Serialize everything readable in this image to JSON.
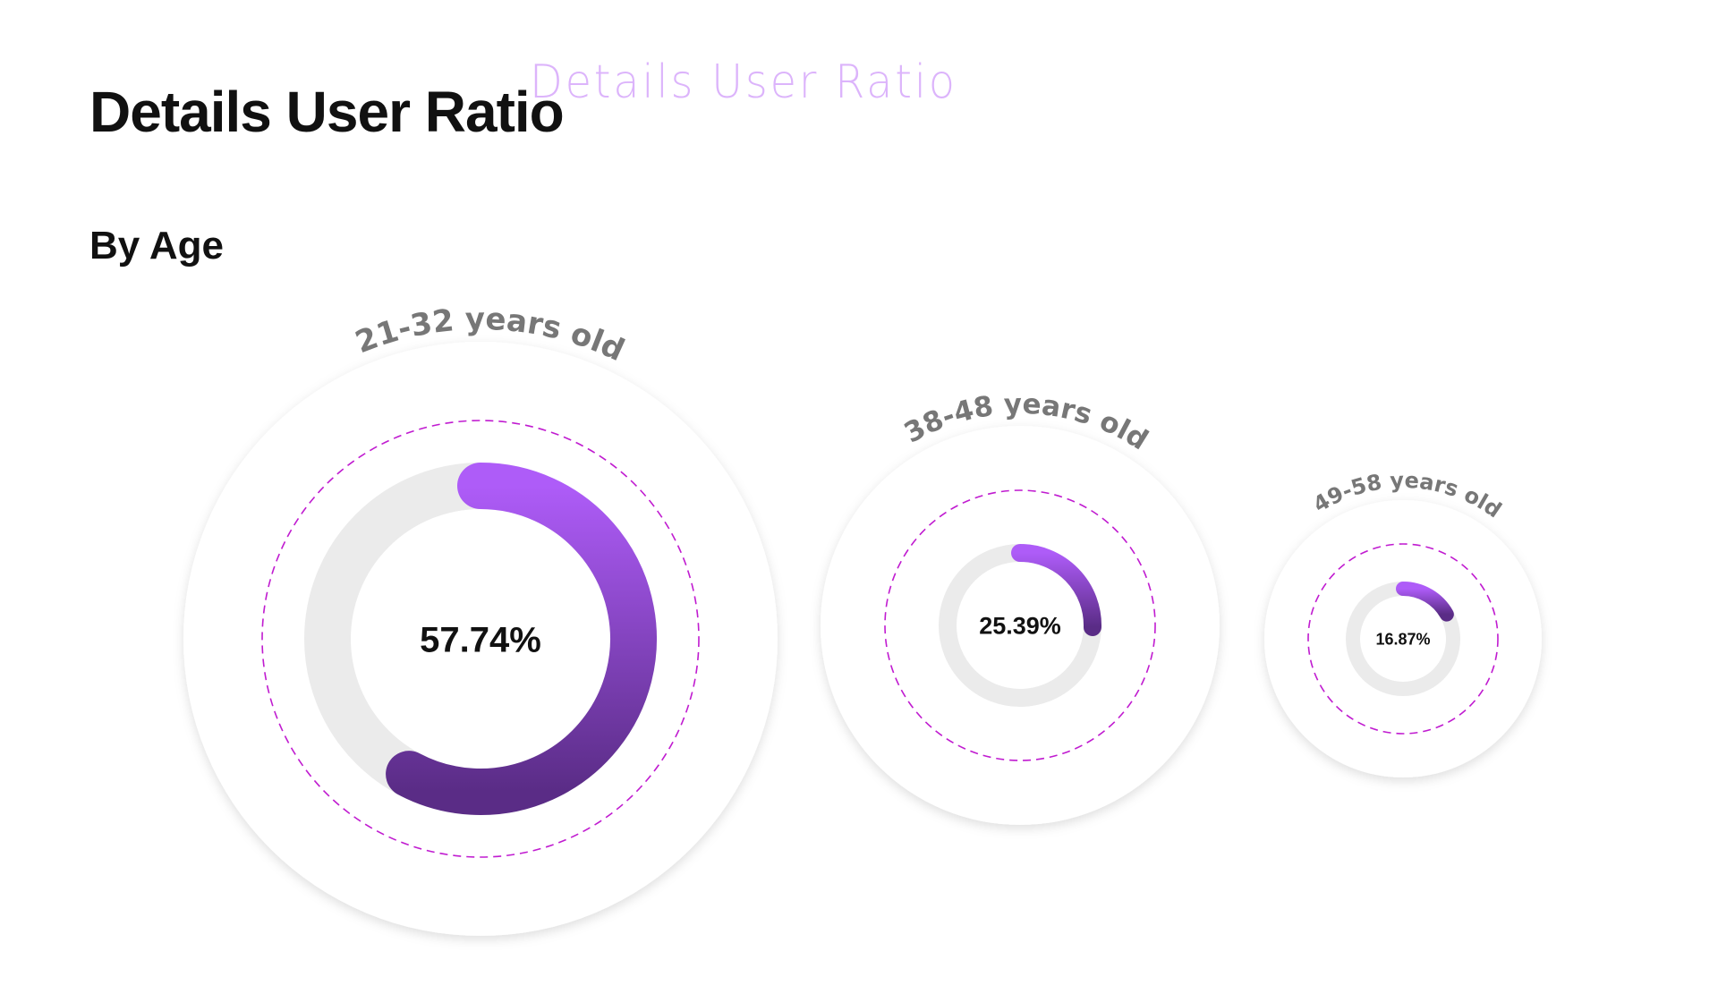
{
  "header": {
    "title": "Details User Ratio",
    "overlay_text": "Details User Ratio",
    "subtitle": "By Age"
  },
  "colors": {
    "progress_start": "#ae5cf8",
    "progress_end": "#5a2c86",
    "track": "#ebebeb",
    "dashed_ring": "#c01bd0",
    "label": "#777777",
    "overlay": "#d7a8fb"
  },
  "chart_data": {
    "type": "pie",
    "style": "donut-progress",
    "title": "",
    "categories": [
      "21-32 years old",
      "38-48 years old",
      "49-58 years old"
    ],
    "values": [
      57.74,
      25.39,
      16.87
    ],
    "value_labels": [
      "57.74%",
      "25.39%",
      "16.87%"
    ],
    "unit": "%"
  }
}
